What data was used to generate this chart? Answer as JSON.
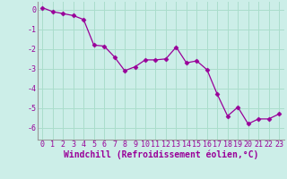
{
  "x": [
    0,
    1,
    2,
    3,
    4,
    5,
    6,
    7,
    8,
    9,
    10,
    11,
    12,
    13,
    14,
    15,
    16,
    17,
    18,
    19,
    20,
    21,
    22,
    23
  ],
  "y": [
    0.1,
    -0.1,
    -0.2,
    -0.3,
    -0.5,
    -1.8,
    -1.85,
    -2.4,
    -3.1,
    -2.9,
    -2.55,
    -2.55,
    -2.5,
    -1.9,
    -2.7,
    -2.6,
    -3.05,
    -4.3,
    -5.4,
    -4.95,
    -5.8,
    -5.55,
    -5.55,
    -5.3
  ],
  "line_color": "#990099",
  "marker": "D",
  "marker_size": 2.5,
  "bg_color": "#cceee8",
  "grid_color": "#aaddcc",
  "xlabel": "Windchill (Refroidissement éolien,°C)",
  "xlabel_color": "#990099",
  "xlabel_fontsize": 7,
  "tick_color": "#990099",
  "tick_fontsize": 6,
  "ytick_labels": [
    "0",
    "-1",
    "-2",
    "-3",
    "-4",
    "-5",
    "-6"
  ],
  "ytick_vals": [
    0,
    -1,
    -2,
    -3,
    -4,
    -5,
    -6
  ],
  "ylim": [
    -6.6,
    0.4
  ],
  "xlim": [
    -0.5,
    23.5
  ]
}
